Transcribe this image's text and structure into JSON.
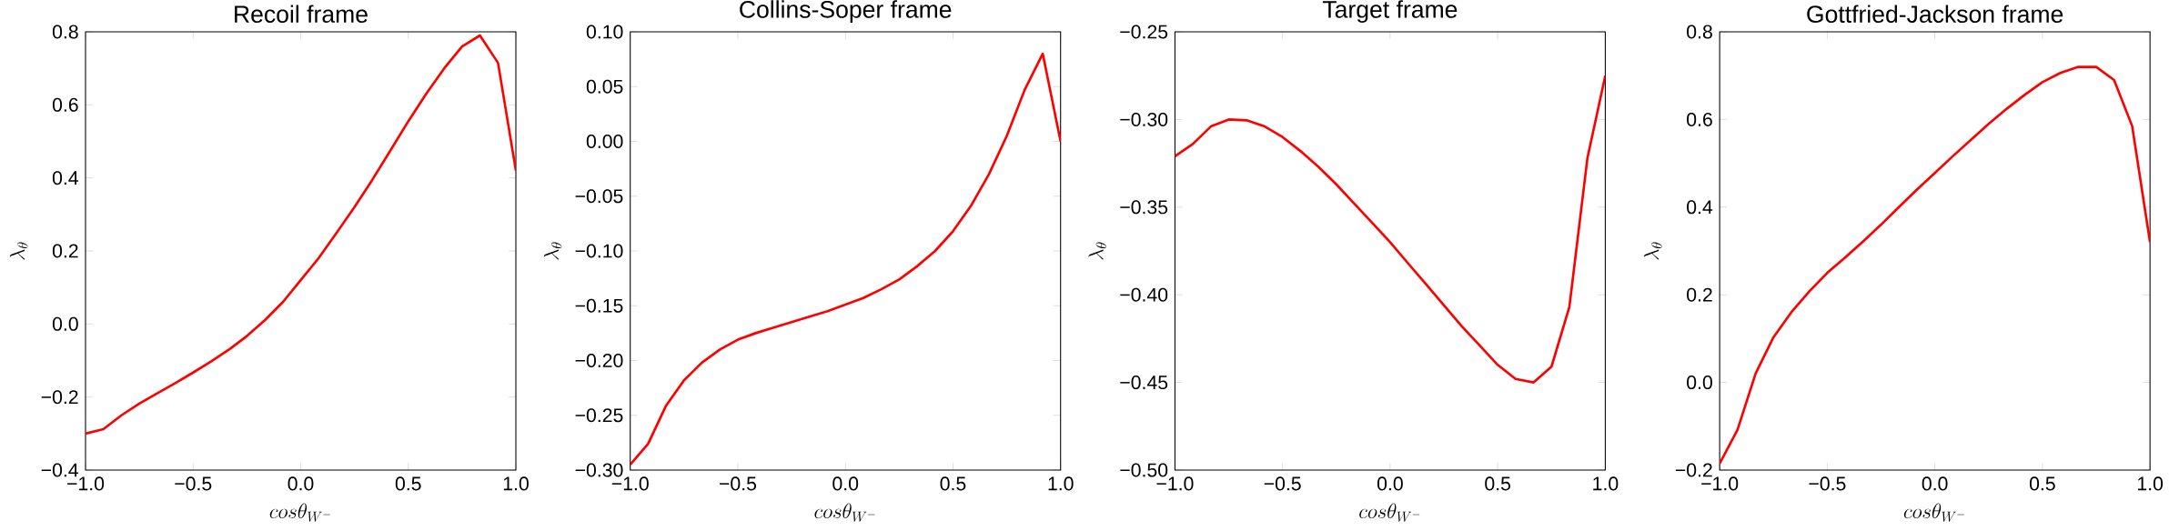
{
  "chart_data": [
    {
      "type": "line",
      "title": "Recoil frame",
      "xlabel": "cos\\theta_{W^-}",
      "ylabel": "\\lambda_{\\theta}",
      "color": "#ff0000",
      "x": [
        -1.0,
        -0.917,
        -0.833,
        -0.75,
        -0.667,
        -0.583,
        -0.5,
        -0.417,
        -0.333,
        -0.25,
        -0.167,
        -0.083,
        0.0,
        0.083,
        0.167,
        0.25,
        0.333,
        0.417,
        0.5,
        0.583,
        0.667,
        0.75,
        0.833,
        0.917,
        1.0
      ],
      "values": [
        -0.3,
        -0.288,
        -0.25,
        -0.218,
        -0.19,
        -0.162,
        -0.133,
        -0.103,
        -0.07,
        -0.033,
        0.01,
        0.06,
        0.12,
        0.18,
        0.25,
        0.32,
        0.395,
        0.475,
        0.555,
        0.63,
        0.7,
        0.76,
        0.79,
        0.715,
        0.42
      ],
      "xlim": [
        -1.0,
        1.0
      ],
      "ylim": [
        -0.4,
        0.8
      ],
      "xticks": [
        {
          "value": -1.0,
          "label": "−1.0"
        },
        {
          "value": -0.5,
          "label": "−0.5"
        },
        {
          "value": 0.0,
          "label": "0.0"
        },
        {
          "value": 0.5,
          "label": "0.5"
        },
        {
          "value": 1.0,
          "label": "1.0"
        }
      ],
      "yticks": [
        {
          "value": -0.4,
          "label": "−0.4"
        },
        {
          "value": -0.2,
          "label": "−0.2"
        },
        {
          "value": 0.0,
          "label": "0.0"
        },
        {
          "value": 0.2,
          "label": "0.2"
        },
        {
          "value": 0.4,
          "label": "0.4"
        },
        {
          "value": 0.6,
          "label": "0.6"
        },
        {
          "value": 0.8,
          "label": "0.8"
        }
      ]
    },
    {
      "type": "line",
      "title": "Collins-Soper frame",
      "xlabel": "cos\\theta_{W^-}",
      "ylabel": "\\lambda_{\\theta}",
      "color": "#ff0000",
      "x": [
        -1.0,
        -0.917,
        -0.833,
        -0.75,
        -0.667,
        -0.583,
        -0.5,
        -0.417,
        -0.333,
        -0.25,
        -0.167,
        -0.083,
        0.0,
        0.083,
        0.167,
        0.25,
        0.333,
        0.417,
        0.5,
        0.583,
        0.667,
        0.75,
        0.833,
        0.917,
        1.0
      ],
      "values": [
        -0.295,
        -0.276,
        -0.241,
        -0.218,
        -0.202,
        -0.19,
        -0.181,
        -0.175,
        -0.17,
        -0.165,
        -0.16,
        -0.155,
        -0.149,
        -0.143,
        -0.135,
        -0.126,
        -0.114,
        -0.1,
        -0.082,
        -0.059,
        -0.03,
        0.005,
        0.047,
        0.08,
        0.0
      ],
      "xlim": [
        -1.0,
        1.0
      ],
      "ylim": [
        -0.3,
        0.1
      ],
      "xticks": [
        {
          "value": -1.0,
          "label": "−1.0"
        },
        {
          "value": -0.5,
          "label": "−0.5"
        },
        {
          "value": 0.0,
          "label": "0.0"
        },
        {
          "value": 0.5,
          "label": "0.5"
        },
        {
          "value": 1.0,
          "label": "1.0"
        }
      ],
      "yticks": [
        {
          "value": -0.3,
          "label": "−0.30"
        },
        {
          "value": -0.25,
          "label": "−0.25"
        },
        {
          "value": -0.2,
          "label": "−0.20"
        },
        {
          "value": -0.15,
          "label": "−0.15"
        },
        {
          "value": -0.1,
          "label": "−0.10"
        },
        {
          "value": -0.05,
          "label": "−0.05"
        },
        {
          "value": 0.0,
          "label": "0.00"
        },
        {
          "value": 0.05,
          "label": "0.05"
        },
        {
          "value": 0.1,
          "label": "0.10"
        }
      ]
    },
    {
      "type": "line",
      "title": "Target frame",
      "xlabel": "cos\\theta_{W^-}",
      "ylabel": "\\lambda_{\\theta}",
      "color": "#ff0000",
      "x": [
        -1.0,
        -0.917,
        -0.833,
        -0.75,
        -0.667,
        -0.583,
        -0.5,
        -0.417,
        -0.333,
        -0.25,
        -0.167,
        -0.083,
        0.0,
        0.083,
        0.167,
        0.25,
        0.333,
        0.417,
        0.5,
        0.583,
        0.667,
        0.75,
        0.833,
        0.917,
        1.0
      ],
      "values": [
        -0.321,
        -0.314,
        -0.304,
        -0.3,
        -0.3005,
        -0.304,
        -0.31,
        -0.318,
        -0.327,
        -0.337,
        -0.348,
        -0.359,
        -0.37,
        -0.382,
        -0.394,
        -0.406,
        -0.418,
        -0.429,
        -0.44,
        -0.448,
        -0.45,
        -0.441,
        -0.407,
        -0.322,
        -0.275
      ],
      "xlim": [
        -1.0,
        1.0
      ],
      "ylim": [
        -0.5,
        -0.25
      ],
      "xticks": [
        {
          "value": -1.0,
          "label": "−1.0"
        },
        {
          "value": -0.5,
          "label": "−0.5"
        },
        {
          "value": 0.0,
          "label": "0.0"
        },
        {
          "value": 0.5,
          "label": "0.5"
        },
        {
          "value": 1.0,
          "label": "1.0"
        }
      ],
      "yticks": [
        {
          "value": -0.5,
          "label": "−0.50"
        },
        {
          "value": -0.45,
          "label": "−0.45"
        },
        {
          "value": -0.4,
          "label": "−0.40"
        },
        {
          "value": -0.35,
          "label": "−0.35"
        },
        {
          "value": -0.3,
          "label": "−0.30"
        },
        {
          "value": -0.25,
          "label": "−0.25"
        }
      ]
    },
    {
      "type": "line",
      "title": "Gottfried-Jackson frame",
      "xlabel": "cos\\theta_{W^-}",
      "ylabel": "\\lambda_{\\theta}",
      "color": "#ff0000",
      "x": [
        -1.0,
        -0.917,
        -0.833,
        -0.75,
        -0.667,
        -0.583,
        -0.5,
        -0.417,
        -0.333,
        -0.25,
        -0.167,
        -0.083,
        0.0,
        0.083,
        0.167,
        0.25,
        0.333,
        0.417,
        0.5,
        0.583,
        0.667,
        0.75,
        0.833,
        0.917,
        1.0
      ],
      "values": [
        -0.185,
        -0.108,
        0.02,
        0.103,
        0.16,
        0.208,
        0.25,
        0.285,
        0.322,
        0.36,
        0.4,
        0.44,
        0.478,
        0.516,
        0.553,
        0.59,
        0.624,
        0.656,
        0.685,
        0.706,
        0.72,
        0.72,
        0.69,
        0.585,
        0.32
      ],
      "xlim": [
        -1.0,
        1.0
      ],
      "ylim": [
        -0.2,
        0.8
      ],
      "xticks": [
        {
          "value": -1.0,
          "label": "−1.0"
        },
        {
          "value": -0.5,
          "label": "−0.5"
        },
        {
          "value": 0.0,
          "label": "0.0"
        },
        {
          "value": 0.5,
          "label": "0.5"
        },
        {
          "value": 1.0,
          "label": "1.0"
        }
      ],
      "yticks": [
        {
          "value": -0.2,
          "label": "−0.2"
        },
        {
          "value": 0.0,
          "label": "0.0"
        },
        {
          "value": 0.2,
          "label": "0.2"
        },
        {
          "value": 0.4,
          "label": "0.4"
        },
        {
          "value": 0.6,
          "label": "0.6"
        },
        {
          "value": 0.8,
          "label": "0.8"
        }
      ]
    }
  ]
}
